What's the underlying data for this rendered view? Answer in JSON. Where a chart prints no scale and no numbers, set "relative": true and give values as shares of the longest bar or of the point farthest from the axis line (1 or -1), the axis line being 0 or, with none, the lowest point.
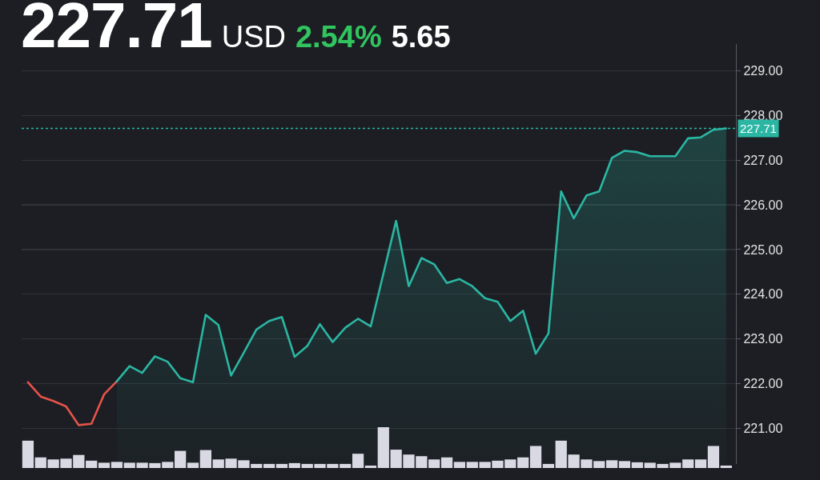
{
  "chart_data": [
    {
      "type": "line",
      "title": "227.71",
      "annotations": [
        "USD",
        "2.54%",
        "5.65"
      ],
      "categories": [
        null,
        null,
        null,
        null,
        null,
        null,
        null,
        null,
        null,
        null,
        null,
        null,
        null,
        null,
        null,
        null,
        null,
        null,
        null,
        null,
        null,
        null,
        null,
        null,
        null,
        null,
        null,
        null,
        null,
        null,
        null,
        null,
        null,
        null,
        null,
        null,
        null,
        null,
        null,
        null,
        null,
        null,
        null,
        null,
        null,
        null,
        null,
        null,
        null,
        null,
        null,
        null,
        null,
        null,
        null,
        null
      ],
      "series": [
        {
          "color": "#e5534b",
          "values": [
            222.03,
            221.71,
            221.61,
            221.49,
            221.07,
            221.1,
            221.76,
            222.05,
            null,
            null,
            null,
            null,
            null,
            null,
            null,
            null,
            null,
            null,
            null,
            null,
            null,
            null,
            null,
            null,
            null,
            null,
            null,
            null,
            null,
            null,
            null,
            null,
            null,
            null,
            null,
            null,
            null,
            null,
            null,
            null,
            null,
            null,
            null,
            null,
            null,
            null,
            null,
            null,
            null,
            null,
            null,
            null,
            null,
            null,
            null,
            null
          ]
        },
        {
          "type": "area",
          "color": "#2bb6a3",
          "values": [
            null,
            null,
            null,
            null,
            null,
            null,
            null,
            222.05,
            222.39,
            222.24,
            222.61,
            222.49,
            222.12,
            222.03,
            223.54,
            223.31,
            222.18,
            222.69,
            223.21,
            223.4,
            223.49,
            222.6,
            222.84,
            223.33,
            222.93,
            223.25,
            223.45,
            223.28,
            224.46,
            225.64,
            224.18,
            224.81,
            224.67,
            224.25,
            224.34,
            224.18,
            223.91,
            223.83,
            223.4,
            223.63,
            222.67,
            223.12,
            226.3,
            225.7,
            226.21,
            226.3,
            227.05,
            227.21,
            227.18,
            227.09,
            227.09,
            227.09,
            227.49,
            227.51,
            227.68,
            227.71
          ]
        }
      ],
      "ylim": [
        220.2,
        229.6
      ],
      "yticks": [
        {
          "value": 221,
          "label": "221.00"
        },
        {
          "value": 222,
          "label": "222.00"
        },
        {
          "value": 223,
          "label": "223.00"
        },
        {
          "value": 224,
          "label": "224.00"
        },
        {
          "value": 225,
          "label": "225.00"
        },
        {
          "value": 226,
          "label": "226.00"
        },
        {
          "value": 227,
          "label": "227.00"
        },
        {
          "value": 228,
          "label": "228.00"
        },
        {
          "value": 229,
          "label": "229.00"
        }
      ],
      "grid": "y",
      "tick_labels": "y",
      "ref_lines": [
        {
          "axis": "y",
          "value": 227.71,
          "label": "227.71",
          "color": "#2bb6a3",
          "line_style": "dotted"
        }
      ]
    },
    {
      "type": "bar",
      "relative": true,
      "tick_labels": false,
      "color": "#d9d9e3",
      "categories": [
        null,
        null,
        null,
        null,
        null,
        null,
        null,
        null,
        null,
        null,
        null,
        null,
        null,
        null,
        null,
        null,
        null,
        null,
        null,
        null,
        null,
        null,
        null,
        null,
        null,
        null,
        null,
        null,
        null,
        null,
        null,
        null,
        null,
        null,
        null,
        null,
        null,
        null,
        null,
        null,
        null,
        null,
        null,
        null,
        null,
        null,
        null,
        null,
        null,
        null,
        null,
        null,
        null,
        null,
        null,
        null
      ],
      "values": [
        0.67,
        0.26,
        0.21,
        0.23,
        0.32,
        0.18,
        0.13,
        0.15,
        0.13,
        0.13,
        0.12,
        0.15,
        0.42,
        0.13,
        0.44,
        0.21,
        0.23,
        0.19,
        0.1,
        0.1,
        0.1,
        0.12,
        0.1,
        0.1,
        0.1,
        0.1,
        0.35,
        0.06,
        1,
        0.45,
        0.33,
        0.29,
        0.21,
        0.26,
        0.15,
        0.15,
        0.15,
        0.18,
        0.21,
        0.26,
        0.54,
        0.1,
        0.67,
        0.33,
        0.21,
        0.17,
        0.19,
        0.17,
        0.14,
        0.13,
        0.1,
        0.13,
        0.21,
        0.21,
        0.54,
        0.06
      ]
    }
  ]
}
